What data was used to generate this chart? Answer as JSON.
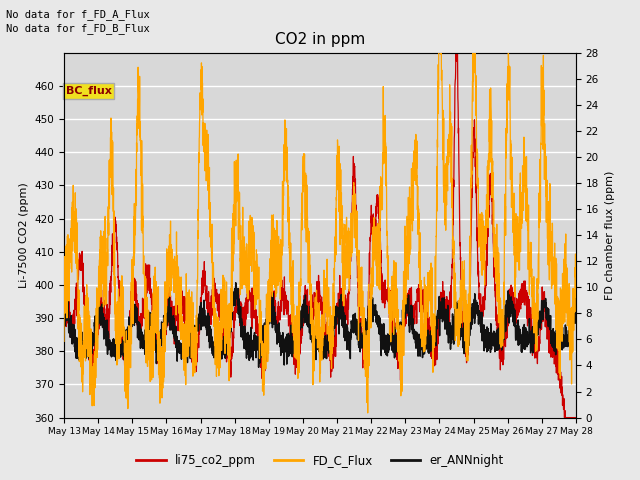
{
  "title": "CO2 in ppm",
  "ylabel_left": "Li-7500 CO2 (ppm)",
  "ylabel_right": "FD chamber flux (ppm)",
  "ylim_left": [
    360,
    470
  ],
  "ylim_right": [
    0,
    28
  ],
  "text_line1": "No data for f_FD_A_Flux",
  "text_line2": "No data for f_FD_B_Flux",
  "bc_flux_label": "BC_flux",
  "legend_entries": [
    "li75_co2_ppm",
    "FD_C_Flux",
    "er_ANNnight"
  ],
  "line_colors": [
    "#cc0000",
    "#ffa500",
    "#111111"
  ],
  "bg_color": "#e8e8e8",
  "plot_bg_color": "#d8d8d8",
  "grid_color": "#f0f0f0",
  "yticks_left": [
    360,
    370,
    380,
    390,
    400,
    410,
    420,
    430,
    440,
    450,
    460
  ],
  "yticks_right": [
    0,
    2,
    4,
    6,
    8,
    10,
    12,
    14,
    16,
    18,
    20,
    22,
    24,
    26,
    28
  ],
  "x_ticks": [
    13,
    14,
    15,
    16,
    17,
    18,
    19,
    20,
    21,
    22,
    23,
    24,
    25,
    26,
    27,
    28
  ],
  "x_start": 13,
  "x_end": 28
}
